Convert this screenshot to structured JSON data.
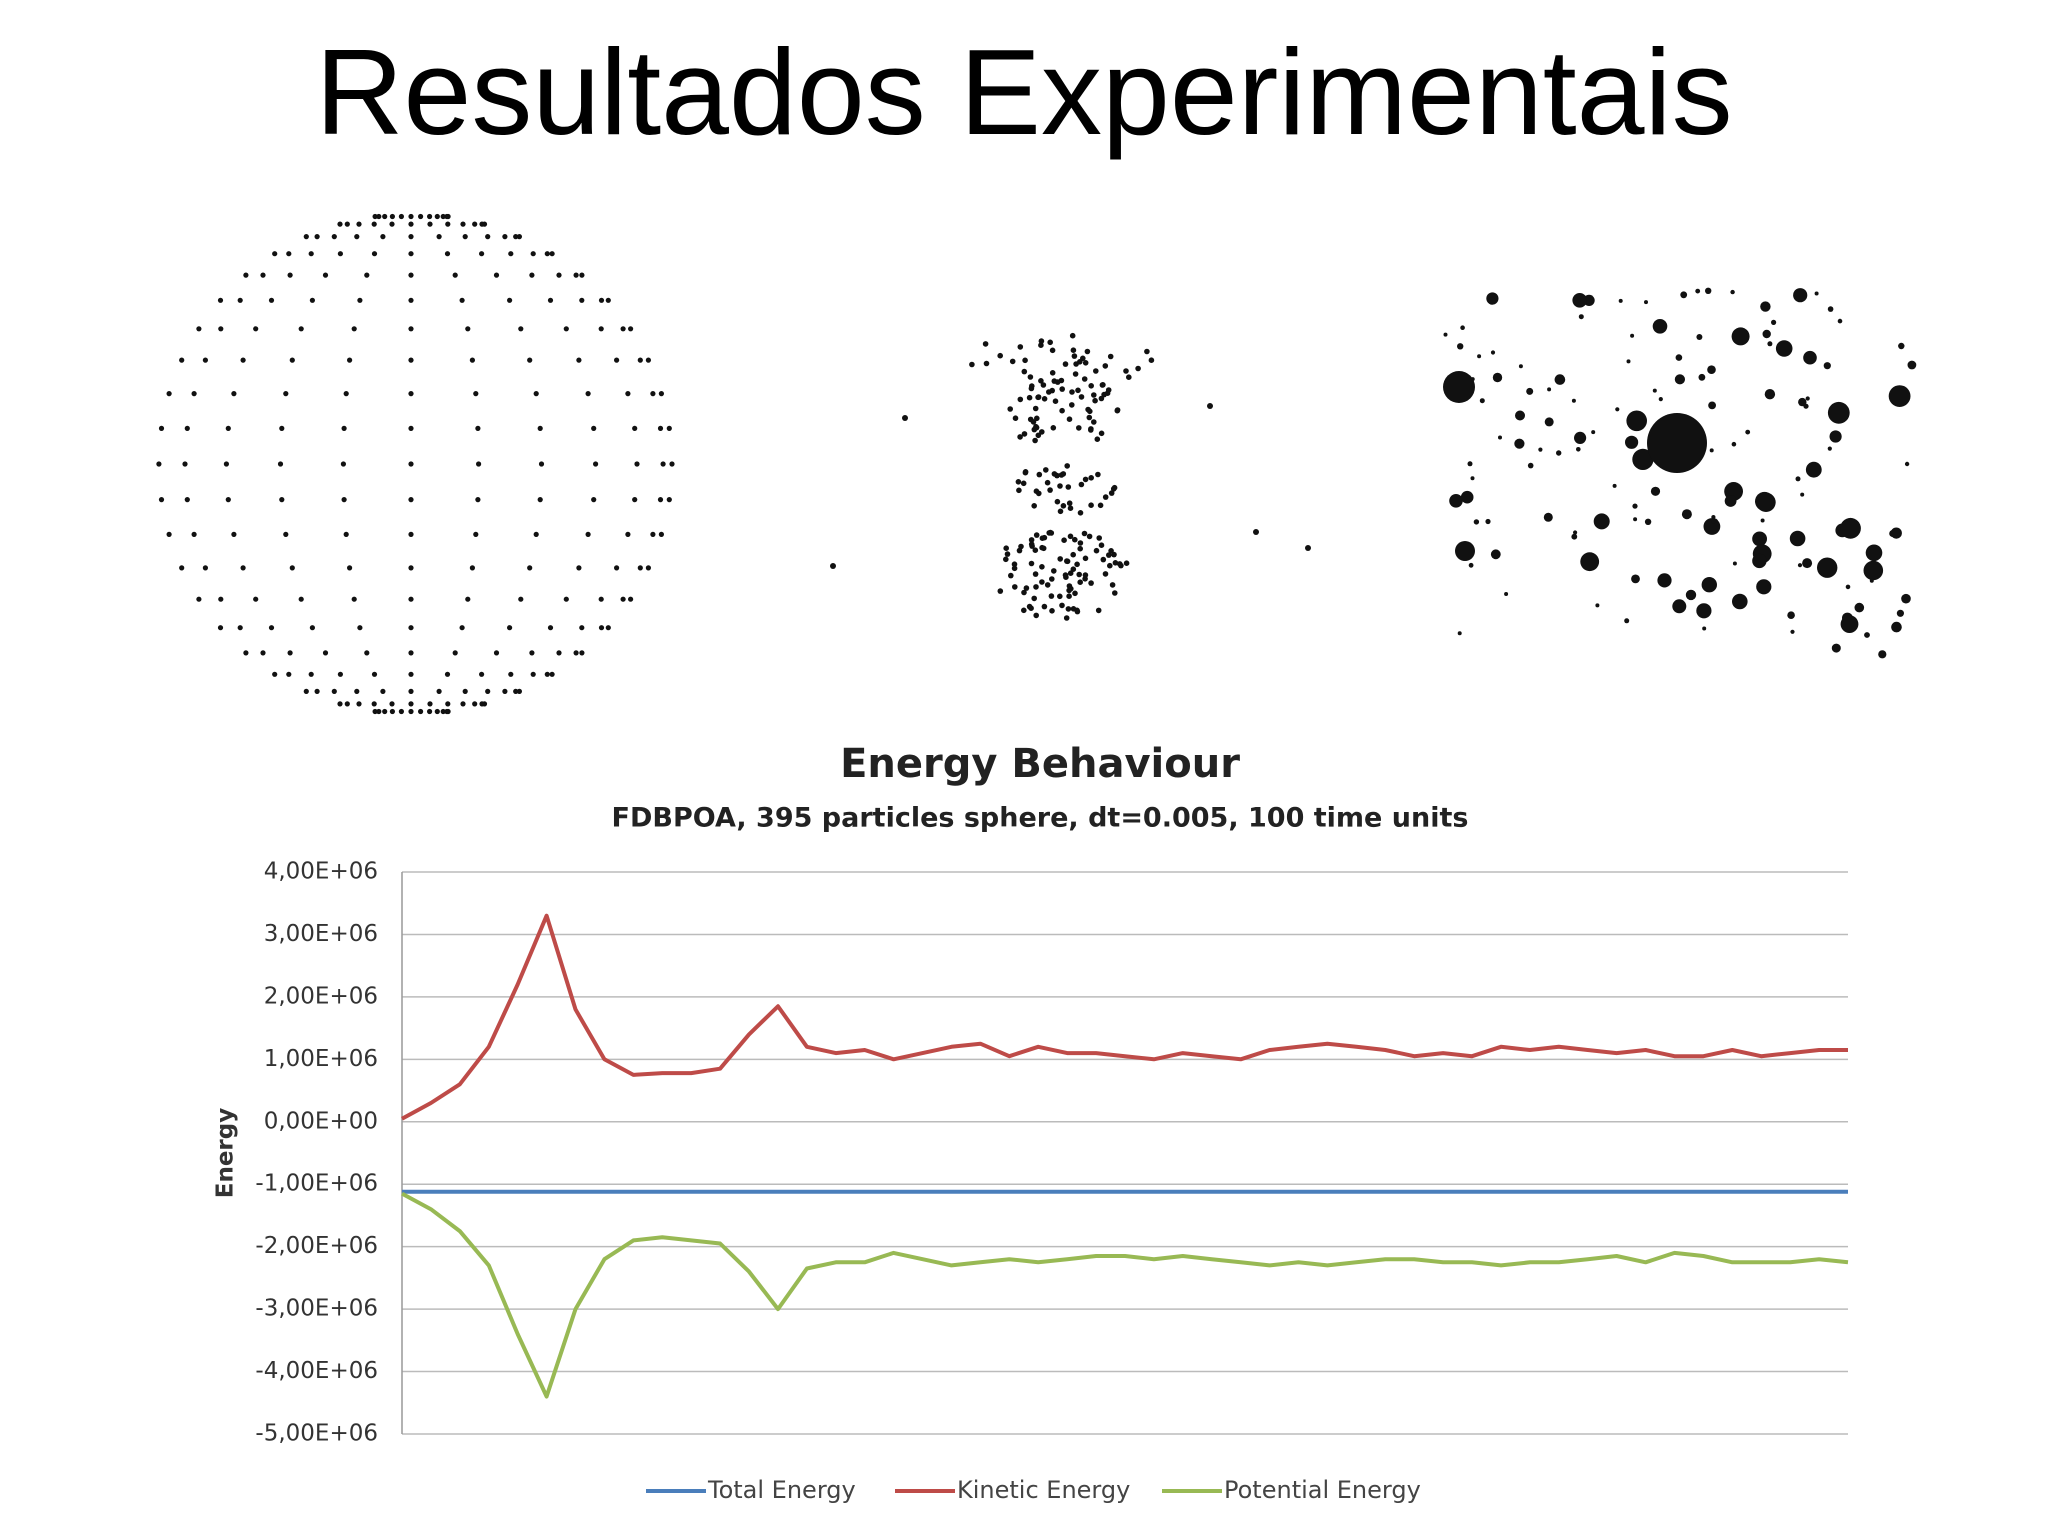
{
  "title": "Resultados Experimentais",
  "chart_data": {
    "type": "line",
    "title": "Energy Behaviour",
    "subtitle": "FDBPOA, 395 particles sphere, dt=0.005, 100 time units",
    "ylabel": "Energy",
    "ylim": [
      -5000000,
      4000000
    ],
    "yticks": [
      {
        "value": 4000000,
        "label": "4,00E+06"
      },
      {
        "value": 3000000,
        "label": "3,00E+06"
      },
      {
        "value": 2000000,
        "label": "2,00E+06"
      },
      {
        "value": 1000000,
        "label": "1,00E+06"
      },
      {
        "value": 0,
        "label": "0,00E+00"
      },
      {
        "value": -1000000,
        "label": "-1,00E+06"
      },
      {
        "value": -2000000,
        "label": "-2,00E+06"
      },
      {
        "value": -3000000,
        "label": "-3,00E+06"
      },
      {
        "value": -4000000,
        "label": "-4,00E+06"
      },
      {
        "value": -5000000,
        "label": "-5,00E+06"
      }
    ],
    "grid": true,
    "legend": "bottom",
    "series": [
      {
        "name": "Total Energy",
        "color": "#4a7ebb",
        "values": [
          -1120000,
          -1120000,
          -1120000,
          -1120000,
          -1120000,
          -1120000,
          -1120000,
          -1120000,
          -1120000,
          -1120000,
          -1120000,
          -1120000,
          -1120000,
          -1120000,
          -1120000,
          -1120000,
          -1120000,
          -1120000,
          -1120000,
          -1120000,
          -1120000,
          -1120000,
          -1120000,
          -1120000,
          -1120000,
          -1120000,
          -1120000,
          -1120000,
          -1120000,
          -1120000,
          -1120000,
          -1120000,
          -1120000,
          -1120000,
          -1120000,
          -1120000,
          -1120000,
          -1120000,
          -1120000,
          -1120000,
          -1120000,
          -1120000,
          -1120000,
          -1120000,
          -1120000,
          -1120000,
          -1120000,
          -1120000,
          -1120000,
          -1120000,
          -1120000
        ]
      },
      {
        "name": "Kinetic Energy",
        "color": "#be4b48",
        "values": [
          50000,
          300000,
          600000,
          1200000,
          2200000,
          3300000,
          1800000,
          1000000,
          750000,
          780000,
          780000,
          850000,
          1400000,
          1850000,
          1200000,
          1100000,
          1150000,
          1000000,
          1100000,
          1200000,
          1250000,
          1050000,
          1200000,
          1100000,
          1100000,
          1050000,
          1000000,
          1100000,
          1050000,
          1000000,
          1150000,
          1200000,
          1250000,
          1200000,
          1150000,
          1050000,
          1100000,
          1050000,
          1200000,
          1150000,
          1200000,
          1150000,
          1100000,
          1150000,
          1050000,
          1050000,
          1150000,
          1050000,
          1100000,
          1150000,
          1150000
        ]
      },
      {
        "name": "Potential Energy",
        "color": "#98b954",
        "values": [
          -1150000,
          -1400000,
          -1750000,
          -2300000,
          -3400000,
          -4400000,
          -3000000,
          -2200000,
          -1900000,
          -1850000,
          -1900000,
          -1950000,
          -2400000,
          -3000000,
          -2350000,
          -2250000,
          -2250000,
          -2100000,
          -2200000,
          -2300000,
          -2250000,
          -2200000,
          -2250000,
          -2200000,
          -2150000,
          -2150000,
          -2200000,
          -2150000,
          -2200000,
          -2250000,
          -2300000,
          -2250000,
          -2300000,
          -2250000,
          -2200000,
          -2200000,
          -2250000,
          -2250000,
          -2300000,
          -2250000,
          -2250000,
          -2200000,
          -2150000,
          -2250000,
          -2100000,
          -2150000,
          -2250000,
          -2250000,
          -2250000,
          -2200000,
          -2250000
        ]
      }
    ]
  }
}
